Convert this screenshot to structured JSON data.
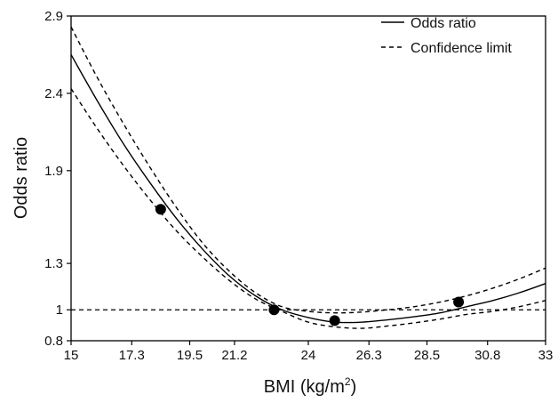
{
  "chart_data": {
    "type": "line",
    "title": "",
    "xlabel": "BMI (kg/m",
    "xlabel_sup": "2",
    "xlabel_suffix": ")",
    "ylabel": "Odds ratio",
    "xlim": [
      15,
      33
    ],
    "ylim": [
      0.8,
      2.9
    ],
    "x_ticks": [
      15,
      17.3,
      19.5,
      21.2,
      24,
      26.3,
      28.5,
      30.8,
      33
    ],
    "x_tick_labels": [
      "15",
      "17.3",
      "19.5",
      "21.2",
      "24",
      "26.3",
      "28.5",
      "30.8",
      "33"
    ],
    "y_ticks": [
      0.8,
      1,
      1.3,
      1.9,
      2.4,
      2.9
    ],
    "y_tick_labels": [
      "0.8",
      "1",
      "1.3",
      "1.9",
      "2.4",
      "2.9"
    ],
    "legend_position": "top-right",
    "grid": false,
    "reference_line": {
      "y": 1,
      "style": "dashed"
    },
    "series": [
      {
        "name": "Odds ratio",
        "style": "solid",
        "color": "#000000",
        "x": [
          15,
          16,
          17,
          18,
          19,
          20,
          21,
          22,
          23,
          24,
          25,
          26,
          27,
          28,
          29,
          30,
          31,
          32,
          33
        ],
        "y": [
          2.65,
          2.35,
          2.07,
          1.82,
          1.59,
          1.39,
          1.22,
          1.09,
          1.0,
          0.95,
          0.92,
          0.92,
          0.935,
          0.955,
          0.98,
          1.02,
          1.06,
          1.11,
          1.17
        ]
      },
      {
        "name": "Confidence limit",
        "style": "dashed",
        "color": "#000000",
        "x": [
          15,
          16,
          17,
          18,
          19,
          20,
          21,
          22,
          23,
          24,
          25,
          26,
          27,
          28,
          29,
          30,
          31,
          32,
          33
        ],
        "y": [
          2.83,
          2.5,
          2.2,
          1.92,
          1.66,
          1.43,
          1.25,
          1.11,
          1.02,
          0.99,
          0.98,
          0.985,
          1.0,
          1.02,
          1.05,
          1.09,
          1.14,
          1.2,
          1.27
        ]
      },
      {
        "name": "",
        "style": "dashed",
        "color": "#000000",
        "x": [
          15,
          16,
          17,
          18,
          19,
          20,
          21,
          22,
          23,
          24,
          25,
          26,
          27,
          28,
          29,
          30,
          31,
          32,
          33
        ],
        "y": [
          2.43,
          2.17,
          1.93,
          1.71,
          1.51,
          1.34,
          1.19,
          1.07,
          0.99,
          0.92,
          0.89,
          0.88,
          0.895,
          0.915,
          0.94,
          0.97,
          0.99,
          1.02,
          1.06
        ]
      }
    ],
    "markers": {
      "x": [
        18.4,
        22.7,
        25.0,
        29.7
      ],
      "y": [
        1.65,
        1.0,
        0.93,
        1.05
      ]
    }
  }
}
